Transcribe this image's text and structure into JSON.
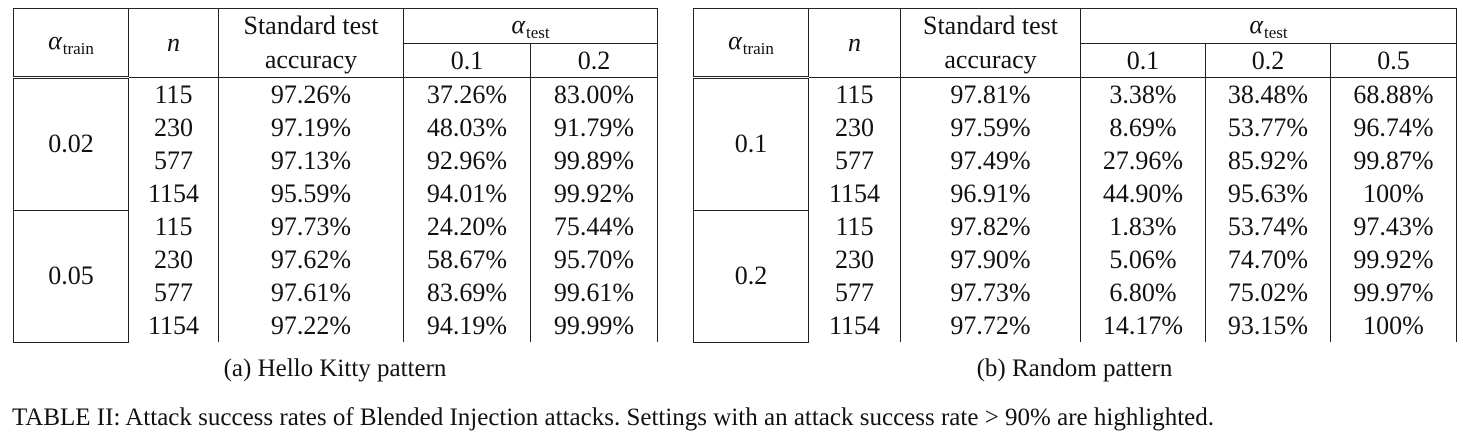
{
  "tables": [
    {
      "caption": "(a) Hello Kitty pattern",
      "header": {
        "alpha_train_symbol": "α",
        "alpha_train_sub": "train",
        "n_label": "n",
        "std_line1": "Standard test",
        "std_line2": "accuracy",
        "alpha_test_symbol": "α",
        "alpha_test_sub": "test",
        "test_cols": [
          "0.1",
          "0.2"
        ]
      },
      "groups": [
        {
          "alpha_train": "0.02",
          "rows": [
            {
              "n": "115",
              "acc": "97.26%",
              "vals": [
                "37.26%",
                "83.00%"
              ],
              "bold": [
                false,
                false
              ]
            },
            {
              "n": "230",
              "acc": "97.19%",
              "vals": [
                "48.03%",
                "91.79%"
              ],
              "bold": [
                false,
                true
              ]
            },
            {
              "n": "577",
              "acc": "97.13%",
              "vals": [
                "92.96%",
                "99.89%"
              ],
              "bold": [
                true,
                true
              ]
            },
            {
              "n": "1154",
              "acc": "95.59%",
              "vals": [
                "94.01%",
                "99.92%"
              ],
              "bold": [
                true,
                true
              ]
            }
          ]
        },
        {
          "alpha_train": "0.05",
          "rows": [
            {
              "n": "115",
              "acc": "97.73%",
              "vals": [
                "24.20%",
                "75.44%"
              ],
              "bold": [
                false,
                false
              ]
            },
            {
              "n": "230",
              "acc": "97.62%",
              "vals": [
                "58.67%",
                "95.70%"
              ],
              "bold": [
                false,
                true
              ]
            },
            {
              "n": "577",
              "acc": "97.61%",
              "vals": [
                "83.69%",
                "99.61%"
              ],
              "bold": [
                false,
                true
              ]
            },
            {
              "n": "1154",
              "acc": "97.22%",
              "vals": [
                "94.19%",
                "99.99%"
              ],
              "bold": [
                true,
                true
              ]
            }
          ]
        }
      ]
    },
    {
      "caption": "(b) Random pattern",
      "header": {
        "alpha_train_symbol": "α",
        "alpha_train_sub": "train",
        "n_label": "n",
        "std_line1": "Standard test",
        "std_line2": "accuracy",
        "alpha_test_symbol": "α",
        "alpha_test_sub": "test",
        "test_cols": [
          "0.1",
          "0.2",
          "0.5"
        ]
      },
      "groups": [
        {
          "alpha_train": "0.1",
          "rows": [
            {
              "n": "115",
              "acc": "97.81%",
              "vals": [
                "3.38%",
                "38.48%",
                "68.88%"
              ],
              "bold": [
                false,
                false,
                false
              ]
            },
            {
              "n": "230",
              "acc": "97.59%",
              "vals": [
                "8.69%",
                "53.77%",
                "96.74%"
              ],
              "bold": [
                false,
                false,
                true
              ]
            },
            {
              "n": "577",
              "acc": "97.49%",
              "vals": [
                "27.96%",
                "85.92%",
                "99.87%"
              ],
              "bold": [
                false,
                false,
                true
              ]
            },
            {
              "n": "1154",
              "acc": "96.91%",
              "vals": [
                "44.90%",
                "95.63%",
                "100%"
              ],
              "bold": [
                false,
                true,
                true
              ]
            }
          ]
        },
        {
          "alpha_train": "0.2",
          "rows": [
            {
              "n": "115",
              "acc": "97.82%",
              "vals": [
                "1.83%",
                "53.74%",
                "97.43%"
              ],
              "bold": [
                false,
                false,
                true
              ]
            },
            {
              "n": "230",
              "acc": "97.90%",
              "vals": [
                "5.06%",
                "74.70%",
                "99.92%"
              ],
              "bold": [
                false,
                false,
                true
              ]
            },
            {
              "n": "577",
              "acc": "97.73%",
              "vals": [
                "6.80%",
                "75.02%",
                "99.97%"
              ],
              "bold": [
                false,
                false,
                true
              ]
            },
            {
              "n": "1154",
              "acc": "97.72%",
              "vals": [
                "14.17%",
                "93.15%",
                "100%"
              ],
              "bold": [
                false,
                true,
                true
              ]
            }
          ]
        }
      ]
    }
  ],
  "main_caption": "TABLE II: Attack success rates of Blended Injection attacks. Settings with an attack success rate > 90% are highlighted."
}
